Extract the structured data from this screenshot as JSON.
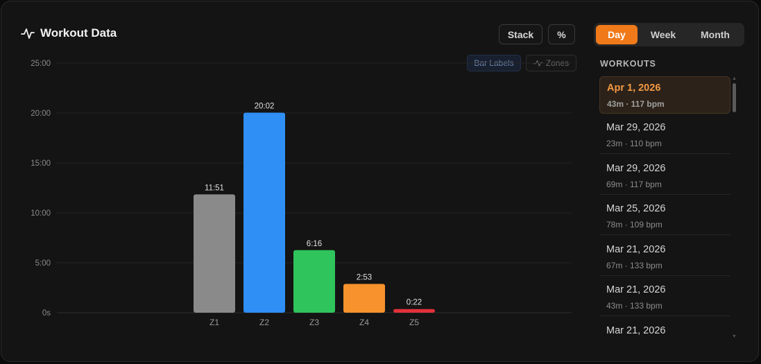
{
  "header": {
    "title": "Workout Data",
    "title_icon": "pulse-icon",
    "stack_label": "Stack",
    "percent_label": "%"
  },
  "range_tabs": [
    {
      "label": "Day",
      "active": true
    },
    {
      "label": "Week",
      "active": false
    },
    {
      "label": "Month",
      "active": false
    }
  ],
  "chart_toggles": {
    "bar_labels": "Bar Labels",
    "zones": "Zones",
    "zones_icon": "pulse-icon"
  },
  "colors": {
    "accent": "#f07a1a",
    "z1": "#8a8a8a",
    "z2": "#2f8ff5",
    "z3": "#2fc45c",
    "z4": "#f7922c",
    "z5": "#e2303a"
  },
  "chart_data": {
    "type": "bar",
    "categories": [
      "Z1",
      "Z2",
      "Z3",
      "Z4",
      "Z5"
    ],
    "values": [
      711,
      1202,
      376,
      173,
      22
    ],
    "value_unit": "seconds",
    "data_labels": [
      "11:51",
      "20:02",
      "6:16",
      "2:53",
      "0:22"
    ],
    "colors": [
      "#8a8a8a",
      "#2f8ff5",
      "#2fc45c",
      "#f7922c",
      "#e2303a"
    ],
    "yticks": [
      0,
      300,
      600,
      900,
      1200,
      1500
    ],
    "ytick_labels": [
      "0s",
      "5:00",
      "10:00",
      "15:00",
      "20:00",
      "25:00"
    ],
    "ylim": [
      0,
      1500
    ],
    "grid": true
  },
  "workouts": {
    "heading": "WORKOUTS",
    "items": [
      {
        "date": "Apr 1, 2026",
        "meta": "43m · 117 bpm",
        "active": true
      },
      {
        "date": "Mar 29, 2026",
        "meta": "23m · 110 bpm",
        "active": false
      },
      {
        "date": "Mar 29, 2026",
        "meta": "69m · 117 bpm",
        "active": false
      },
      {
        "date": "Mar 25, 2026",
        "meta": "78m · 109 bpm",
        "active": false
      },
      {
        "date": "Mar 21, 2026",
        "meta": "67m · 133 bpm",
        "active": false
      },
      {
        "date": "Mar 21, 2026",
        "meta": "43m · 133 bpm",
        "active": false
      },
      {
        "date": "Mar 21, 2026",
        "meta": "",
        "active": false
      }
    ]
  }
}
